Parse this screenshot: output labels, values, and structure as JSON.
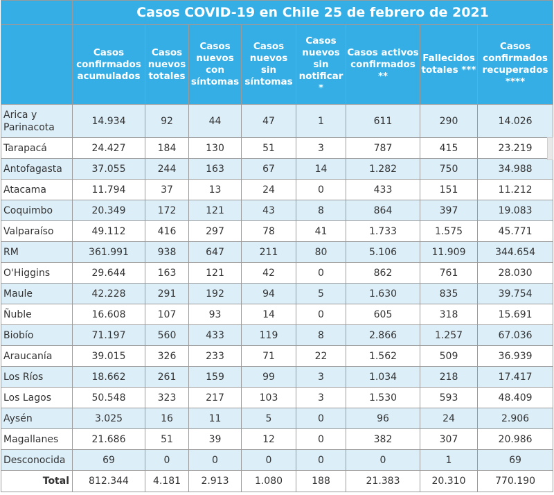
{
  "title": "Casos COVID-19 en Chile 25 de febrero de 2021",
  "headers": [
    "Casos confirmados acumulados",
    "Casos nuevos totales",
    "Casos nuevos con síntomas",
    "Casos nuevos sin síntomas",
    "Casos nuevos sin notificar *",
    "Casos activos confirmados **",
    "Fallecidos totales ***",
    "Casos confirmados recuperados ****"
  ],
  "rows": [
    {
      "region": "Arica y Parinacota",
      "values": [
        "14.934",
        "92",
        "44",
        "47",
        "1",
        "611",
        "290",
        "14.026"
      ]
    },
    {
      "region": "Tarapacá",
      "values": [
        "24.427",
        "184",
        "130",
        "51",
        "3",
        "787",
        "415",
        "23.219"
      ]
    },
    {
      "region": "Antofagasta",
      "values": [
        "37.055",
        "244",
        "163",
        "67",
        "14",
        "1.282",
        "750",
        "34.988"
      ]
    },
    {
      "region": "Atacama",
      "values": [
        "11.794",
        "37",
        "13",
        "24",
        "0",
        "433",
        "151",
        "11.212"
      ]
    },
    {
      "region": "Coquimbo",
      "values": [
        "20.349",
        "172",
        "121",
        "43",
        "8",
        "864",
        "397",
        "19.083"
      ]
    },
    {
      "region": "Valparaíso",
      "values": [
        "49.112",
        "416",
        "297",
        "78",
        "41",
        "1.733",
        "1.575",
        "45.771"
      ]
    },
    {
      "region": "RM",
      "values": [
        "361.991",
        "938",
        "647",
        "211",
        "80",
        "5.106",
        "11.909",
        "344.654"
      ]
    },
    {
      "region": "O'Higgins",
      "values": [
        "29.644",
        "163",
        "121",
        "42",
        "0",
        "862",
        "761",
        "28.030"
      ]
    },
    {
      "region": "Maule",
      "values": [
        "42.228",
        "291",
        "192",
        "94",
        "5",
        "1.630",
        "835",
        "39.754"
      ]
    },
    {
      "region": "Ñuble",
      "values": [
        "16.608",
        "107",
        "93",
        "14",
        "0",
        "605",
        "318",
        "15.691"
      ]
    },
    {
      "region": "Biobío",
      "values": [
        "71.197",
        "560",
        "433",
        "119",
        "8",
        "2.866",
        "1.257",
        "67.036"
      ]
    },
    {
      "region": "Araucanía",
      "values": [
        "39.015",
        "326",
        "233",
        "71",
        "22",
        "1.562",
        "509",
        "36.939"
      ]
    },
    {
      "region": "Los Ríos",
      "values": [
        "18.662",
        "261",
        "159",
        "99",
        "3",
        "1.034",
        "218",
        "17.417"
      ]
    },
    {
      "region": "Los Lagos",
      "values": [
        "50.548",
        "323",
        "217",
        "103",
        "3",
        "1.530",
        "593",
        "48.409"
      ]
    },
    {
      "region": "Aysén",
      "values": [
        "3.025",
        "16",
        "11",
        "5",
        "0",
        "96",
        "24",
        "2.906"
      ]
    },
    {
      "region": "Magallanes",
      "values": [
        "21.686",
        "51",
        "39",
        "12",
        "0",
        "382",
        "307",
        "20.986"
      ]
    },
    {
      "region": "Desconocida",
      "values": [
        "69",
        "0",
        "0",
        "0",
        "0",
        "0",
        "1",
        "69"
      ]
    }
  ],
  "total": {
    "label": "Total",
    "values": [
      "812.344",
      "4.181",
      "2.913",
      "1.080",
      "188",
      "21.383",
      "20.310",
      "770.190"
    ]
  },
  "colors": {
    "header_bg": "#35aee6",
    "header_text": "#ffffff",
    "odd_row_bg": "#dceef8",
    "even_row_bg": "#ffffff",
    "grid": "#9a9a9a"
  }
}
